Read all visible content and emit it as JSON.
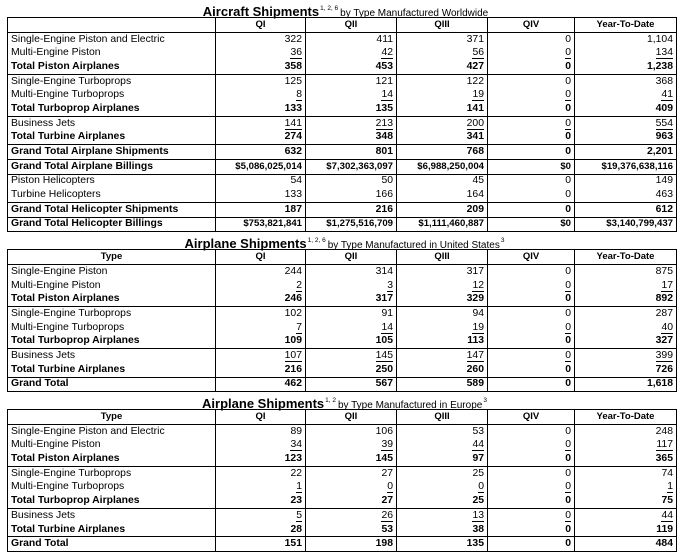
{
  "tables": [
    {
      "title": {
        "main": "Aircraft Shipments",
        "sup": "1, 2, 6",
        "rest": "by Type Manufactured Worldwide"
      },
      "headers": [
        "QI",
        "QII",
        "QIII",
        "QIV",
        "Year-To-Date"
      ],
      "rows": [
        [
          "Single-Engine Piston and Electric",
          "322",
          "411",
          "371",
          "0",
          "1,104"
        ],
        [
          "Multi-Engine Piston",
          "36",
          "42",
          "56",
          "0",
          "134"
        ],
        [
          "Total Piston Airplanes",
          "358",
          "453",
          "427",
          "0",
          "1,238"
        ],
        [
          "Single-Engine Turboprops",
          "125",
          "121",
          "122",
          "0",
          "368"
        ],
        [
          "Multi-Engine Turboprops",
          "8",
          "14",
          "19",
          "0",
          "41"
        ],
        [
          "Total Turboprop Airplanes",
          "133",
          "135",
          "141",
          "0",
          "409"
        ],
        [
          "Business Jets",
          "141",
          "213",
          "200",
          "0",
          "554"
        ],
        [
          "Total Turbine Airplanes",
          "274",
          "348",
          "341",
          "0",
          "963"
        ],
        [
          "Grand Total Airplane Shipments",
          "632",
          "801",
          "768",
          "0",
          "2,201"
        ],
        [
          "Grand Total Airplane Billings",
          "$5,086,025,014",
          "$7,302,363,097",
          "$6,988,250,004",
          "$0",
          "$19,376,638,116"
        ],
        [
          "Piston Helicopters",
          "54",
          "50",
          "45",
          "0",
          "149"
        ],
        [
          "Turbine Helicopters",
          "133",
          "166",
          "164",
          "0",
          "463"
        ],
        [
          "Grand Total Helicopter Shipments",
          "187",
          "216",
          "209",
          "0",
          "612"
        ],
        [
          "Grand Total Helicopter Billings",
          "$753,821,841",
          "$1,275,516,709",
          "$1,111,460,887",
          "$0",
          "$3,140,799,437"
        ]
      ]
    },
    {
      "title": {
        "main": "Airplane Shipments",
        "sup": "1, 2, 6",
        "rest": "by Type Manufactured in United States",
        "sup2": "3"
      },
      "headers": [
        "Type",
        "QI",
        "QII",
        "QIII",
        "QIV",
        "Year-To-Date"
      ],
      "rows": [
        [
          "Single-Engine Piston",
          "244",
          "314",
          "317",
          "0",
          "875"
        ],
        [
          "Multi-Engine Piston",
          "2",
          "3",
          "12",
          "0",
          "17"
        ],
        [
          "Total Piston Airplanes",
          "246",
          "317",
          "329",
          "0",
          "892"
        ],
        [
          "Single-Engine Turboprops",
          "102",
          "91",
          "94",
          "0",
          "287"
        ],
        [
          "Multi-Engine Turboprops",
          "7",
          "14",
          "19",
          "0",
          "40"
        ],
        [
          "Total Turboprop Airplanes",
          "109",
          "105",
          "113",
          "0",
          "327"
        ],
        [
          "Business Jets",
          "107",
          "145",
          "147",
          "0",
          "399"
        ],
        [
          "Total Turbine Airplanes",
          "216",
          "250",
          "260",
          "0",
          "726"
        ],
        [
          "Grand Total",
          "462",
          "567",
          "589",
          "0",
          "1,618"
        ]
      ]
    },
    {
      "title": {
        "main": "Airplane Shipments",
        "sup": "1, 2",
        "rest": "by Type Manufactured in Europe",
        "sup2": "3"
      },
      "headers": [
        "Type",
        "QI",
        "QII",
        "QIII",
        "QIV",
        "Year-To-Date"
      ],
      "rows": [
        [
          "Single-Engine Piston and Electric",
          "89",
          "106",
          "53",
          "0",
          "248"
        ],
        [
          "Multi-Engine Piston",
          "34",
          "39",
          "44",
          "0",
          "117"
        ],
        [
          "Total Piston Airplanes",
          "123",
          "145",
          "97",
          "0",
          "365"
        ],
        [
          "Single-Engine Turboprops",
          "22",
          "27",
          "25",
          "0",
          "74"
        ],
        [
          "Multi-Engine Turboprops",
          "1",
          "0",
          "0",
          "0",
          "1"
        ],
        [
          "Total Turboprop Airplanes",
          "23",
          "27",
          "25",
          "0",
          "75"
        ],
        [
          "Business Jets",
          "5",
          "26",
          "13",
          "0",
          "44"
        ],
        [
          "Total Turbine Airplanes",
          "28",
          "53",
          "38",
          "0",
          "119"
        ],
        [
          "Grand Total",
          "151",
          "198",
          "135",
          "0",
          "484"
        ]
      ]
    }
  ]
}
